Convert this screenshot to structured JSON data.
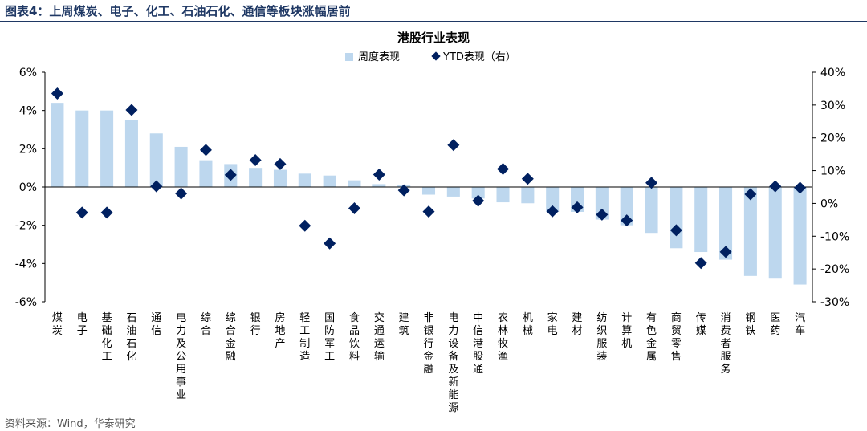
{
  "figure": {
    "title": "图表4：上周煤炭、电子、化工、石油石化、通信等板块涨幅居前",
    "source": "资料来源：Wind，华泰研究"
  },
  "chart_data": {
    "type": "bar",
    "title": "港股行业表现",
    "categories": [
      "煤炭",
      "电子",
      "基础化工",
      "石油石化",
      "通信",
      "电力及公用事业",
      "综合",
      "综合金融",
      "银行",
      "房地产",
      "轻工制造",
      "国防军工",
      "食品饮料",
      "交通运输",
      "建筑",
      "非银行金融",
      "电力设备及新能源",
      "中信港股通",
      "农林牧渔",
      "机械",
      "家电",
      "建材",
      "纺织服装",
      "计算机",
      "有色金属",
      "商贸零售",
      "传媒",
      "消费者服务",
      "钢铁",
      "医药",
      "汽车"
    ],
    "series": [
      {
        "name": "周度表现",
        "type": "bar",
        "axis": "left",
        "color": "#bdd7ee",
        "values": [
          4.4,
          4.0,
          4.0,
          3.5,
          2.8,
          2.1,
          1.4,
          1.2,
          1.0,
          0.9,
          0.7,
          0.6,
          0.35,
          0.15,
          0.1,
          -0.4,
          -0.5,
          -0.6,
          -0.8,
          -0.85,
          -1.3,
          -1.3,
          -1.7,
          -2.0,
          -2.4,
          -3.2,
          -3.4,
          -3.8,
          -4.65,
          -4.75,
          -5.1
        ]
      },
      {
        "name": "YTD表现（右）",
        "type": "scatter",
        "axis": "right",
        "marker": "diamond",
        "color": "#002060",
        "values": [
          33.5,
          -2.8,
          -2.8,
          28.5,
          5.2,
          3.0,
          16.3,
          8.7,
          13.2,
          12.0,
          -6.8,
          -12.2,
          -1.5,
          8.8,
          4.0,
          -2.5,
          17.8,
          0.8,
          10.5,
          7.5,
          -2.4,
          -1.2,
          -3.4,
          -5.2,
          6.3,
          -8.2,
          -18.2,
          -14.8,
          2.8,
          5.2,
          4.8
        ]
      }
    ],
    "left_axis": {
      "min": -6,
      "max": 6,
      "ticks": [
        "6%",
        "4%",
        "2%",
        "0%",
        "-2%",
        "-4%",
        "-6%"
      ]
    },
    "right_axis": {
      "min": -30,
      "max": 40,
      "ticks": [
        "40%",
        "30%",
        "20%",
        "10%",
        "0%",
        "-10%",
        "-20%",
        "-30%"
      ]
    },
    "legend_position": "top-center",
    "grid": false
  }
}
